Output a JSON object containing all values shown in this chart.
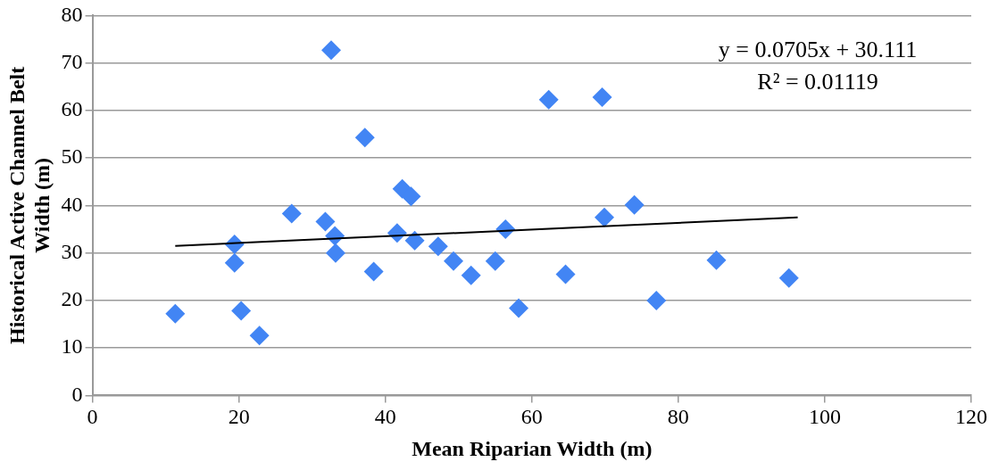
{
  "chart_data": {
    "type": "scatter",
    "xlabel": "Mean Riparian Width (m)",
    "ylabel": "Historical Active Channel Belt Width (m)",
    "xlim": [
      0,
      120
    ],
    "xticks": [
      0,
      20,
      40,
      60,
      80,
      100,
      120
    ],
    "ylim": [
      0,
      80
    ],
    "yticks": [
      0,
      10,
      20,
      30,
      40,
      50,
      60,
      70,
      80
    ],
    "grid": "y",
    "marker": "diamond",
    "series": [
      {
        "color": "#4285f4",
        "x": [
          11.3,
          19.4,
          19.4,
          20.3,
          22.8,
          27.2,
          31.8,
          33.1,
          33.2,
          32.6,
          37.2,
          38.4,
          42.3,
          43.5,
          41.6,
          44.0,
          47.2,
          49.3,
          51.7,
          55.0,
          56.4,
          58.2,
          62.3,
          69.6,
          64.6,
          69.9,
          74.0,
          77.0,
          85.2,
          95.1
        ],
        "values": [
          17.2,
          31.8,
          27.9,
          17.8,
          12.6,
          38.3,
          36.6,
          33.6,
          30.0,
          72.7,
          54.3,
          26.1,
          43.5,
          41.9,
          34.2,
          32.6,
          31.4,
          28.3,
          25.3,
          28.3,
          35.0,
          18.4,
          62.3,
          62.8,
          25.5,
          37.5,
          40.1,
          20.0,
          28.5,
          24.7
        ]
      },
      {
        "type": "line",
        "color": "#000000",
        "x": [
          11.3,
          96.3
        ],
        "values": [
          31.5,
          37.5
        ],
        "marker": "none"
      }
    ],
    "annotations": [
      "y = 0.0705x + 30.111",
      "R² = 0.01119"
    ]
  }
}
